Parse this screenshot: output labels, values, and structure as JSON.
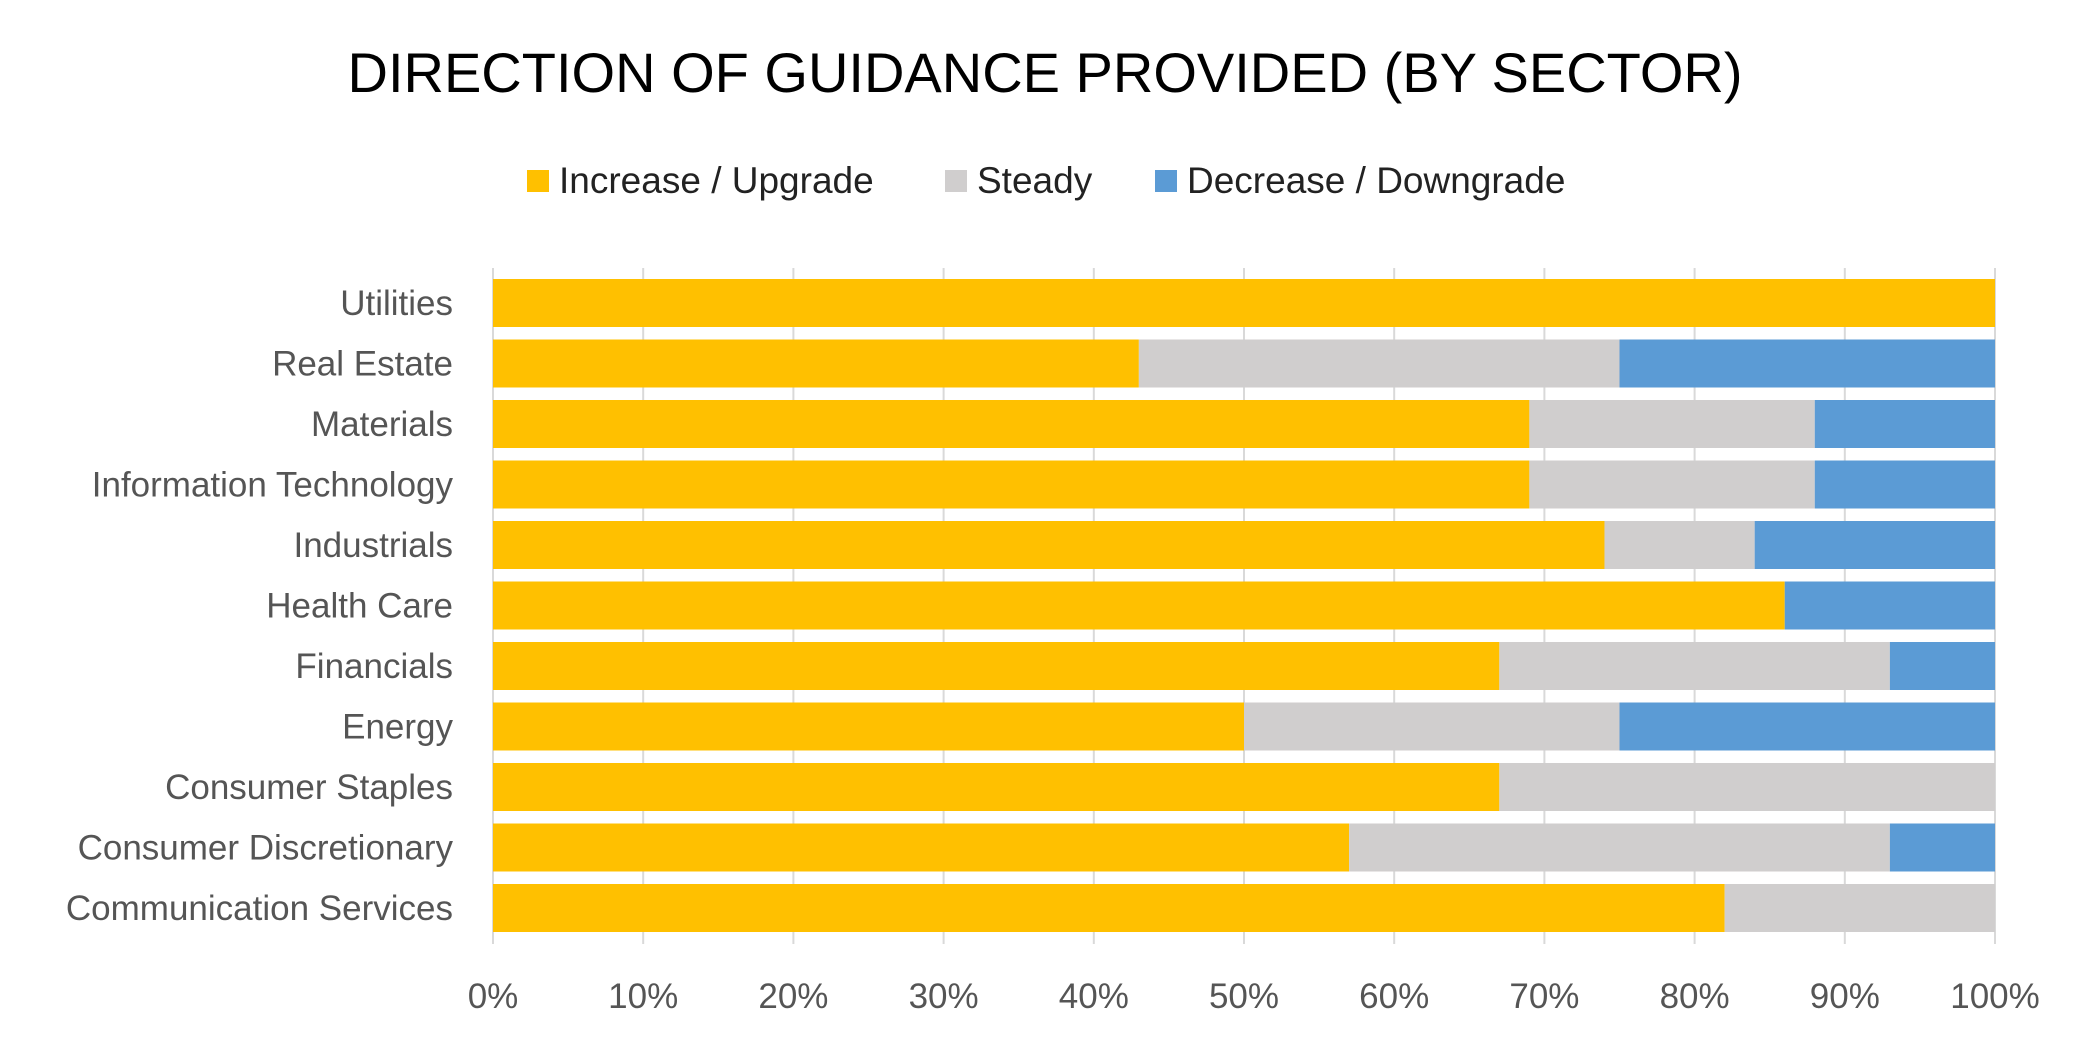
{
  "chart_data": {
    "type": "bar",
    "orientation": "horizontal",
    "stacked": "percent",
    "title": "DIRECTION OF GUIDANCE PROVIDED (BY SECTOR)",
    "xlabel": "",
    "ylabel": "",
    "xlim": [
      0,
      100
    ],
    "x_ticks": [
      "0%",
      "10%",
      "20%",
      "30%",
      "40%",
      "50%",
      "60%",
      "70%",
      "80%",
      "90%",
      "100%"
    ],
    "grid": true,
    "legend_position": "top",
    "categories": [
      "Utilities",
      "Real Estate",
      "Materials",
      "Information Technology",
      "Industrials",
      "Health Care",
      "Financials",
      "Energy",
      "Consumer Staples",
      "Consumer Discretionary",
      "Communication Services"
    ],
    "series": [
      {
        "name": "Increase / Upgrade",
        "color": "#FFC000",
        "values": [
          100,
          43,
          69,
          69,
          74,
          86,
          67,
          50,
          67,
          57,
          82
        ]
      },
      {
        "name": "Steady",
        "color": "#D0CECE",
        "values": [
          0,
          32,
          19,
          19,
          10,
          0,
          26,
          25,
          33,
          36,
          18
        ]
      },
      {
        "name": "Decrease / Downgrade",
        "color": "#5B9BD5",
        "values": [
          0,
          25,
          12,
          12,
          16,
          14,
          7,
          25,
          0,
          7,
          0
        ]
      }
    ]
  }
}
